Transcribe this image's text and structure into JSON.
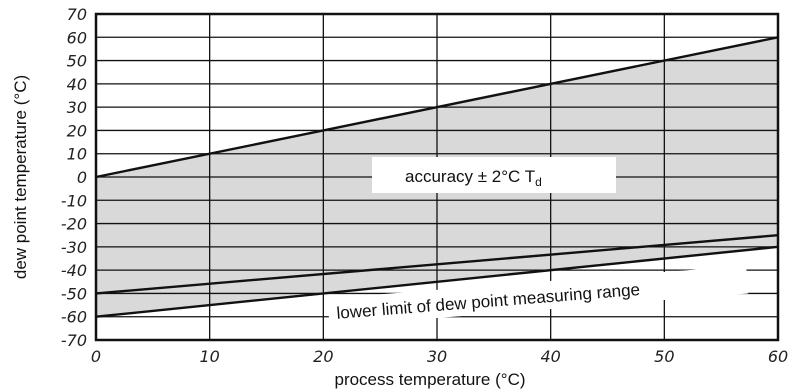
{
  "chart_data": {
    "type": "area",
    "xlabel": "process temperature (°C)",
    "ylabel": "dew point temperature (°C)",
    "xlim": [
      0,
      60
    ],
    "ylim": [
      -70,
      70
    ],
    "x_ticks": [
      "0",
      "10",
      "20",
      "30",
      "40",
      "50",
      "60"
    ],
    "y_ticks": [
      "70",
      "60",
      "50",
      "40",
      "30",
      "20",
      "10",
      "0",
      "-10",
      "-20",
      "-30",
      "-40",
      "-50",
      "-60",
      "-70"
    ],
    "grid": true,
    "series": [
      {
        "values": [
          {
            "x": 0,
            "y": 0
          },
          {
            "x": 60,
            "y": 60
          }
        ]
      },
      {
        "values": [
          {
            "x": 0,
            "y": -50
          },
          {
            "x": 60,
            "y": -25
          }
        ]
      },
      {
        "values": [
          {
            "x": 0,
            "y": -60
          },
          {
            "x": 60,
            "y": -30
          }
        ]
      }
    ],
    "shaded_region": {
      "upper": "dew point = process temperature",
      "lower": "lower limit of dew point measuring range"
    },
    "annotations": {
      "accuracy_main": "accuracy ± 2°C T",
      "accuracy_sub": "d",
      "lower_limit": "lower limit of dew point measuring range"
    },
    "colors": {
      "shade": "#d9d9d9",
      "line": "#111111",
      "grid": "#111111"
    }
  }
}
